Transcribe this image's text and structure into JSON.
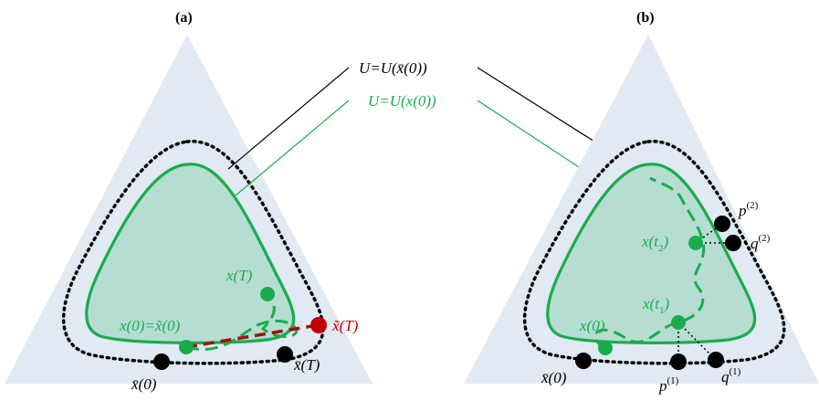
{
  "panels": {
    "a": {
      "title": "(a)"
    },
    "b": {
      "title": "(b)"
    }
  },
  "legend": {
    "dotted_label": "U=U(x̄(0))",
    "green_label": "U=U(x(0))"
  },
  "panel_a": {
    "xT": "x(T)",
    "x0_eq": "x(0)=x̃(0)",
    "xtilde_T": "x̃(T)",
    "xbar0": "x̄(0)",
    "xbarT": "x̄(T)"
  },
  "panel_b": {
    "x0": "x(0)",
    "xt1_base": "x(t",
    "xt1_sub": "1",
    "xt1_close": ")",
    "xt2_base": "x(t",
    "xt2_sub": "2",
    "xt2_close": ")",
    "xbar0": "x̄(0)",
    "p1_base": "p",
    "p1_sup": "(1)",
    "q1_base": "q",
    "q1_sup": "(1)",
    "p2_base": "p",
    "p2_sup": "(2)",
    "q2_base": "q",
    "q2_sup": "(2)"
  },
  "colors": {
    "simplex": "#e1e9f2",
    "green": "#1aab4f",
    "green_fill": "#b6ddd2",
    "black": "#000000",
    "red": "#c00000",
    "dark_red": "#a01010"
  }
}
